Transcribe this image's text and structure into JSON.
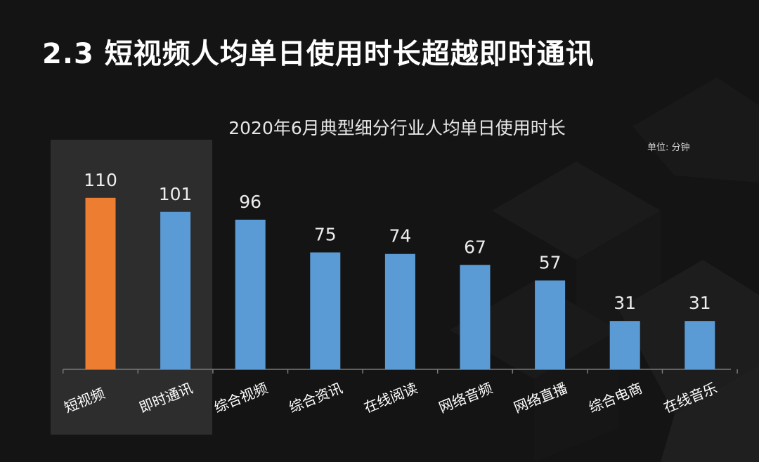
{
  "page_title": "2.3 短视频人均单日使用时长超越即时通讯",
  "chart_data": {
    "type": "bar",
    "title": "2020年6月典型细分行业人均单日使用时长",
    "unit_label": "单位: 分钟",
    "categories": [
      "短视频",
      "即时通讯",
      "综合视频",
      "综合资讯",
      "在线阅读",
      "网络音频",
      "网络直播",
      "综合电商",
      "在线音乐"
    ],
    "values": [
      110,
      101,
      96,
      75,
      74,
      67,
      57,
      31,
      31
    ],
    "highlighted_categories": [
      "短视频",
      "即时通讯"
    ],
    "ylim": [
      0,
      120
    ],
    "grid": false,
    "colors": {
      "primary": "#ed7d31",
      "secondary": "#5b9bd5",
      "highlight_primary_index": 0
    }
  }
}
